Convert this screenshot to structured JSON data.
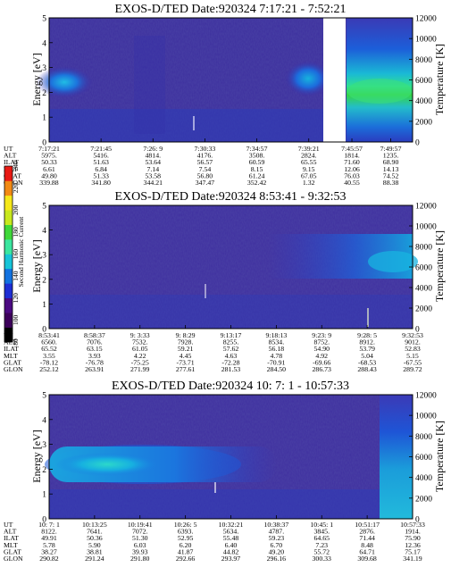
{
  "colorbar": {
    "label": "Second Harmonic Current",
    "ticks": [
      "80",
      "100",
      "120",
      "140",
      "160",
      "180",
      "200",
      "220",
      "240"
    ],
    "colors": [
      "#000000",
      "#3c005a",
      "#4b0a82",
      "#1e2ed4",
      "#1272e0",
      "#17c4d8",
      "#3be6a0",
      "#3fd83a",
      "#c8e81e",
      "#f5e81a",
      "#f28a14",
      "#e81a14"
    ]
  },
  "chart_data": [
    {
      "type": "heatmap",
      "title": "EXOS-D/TED   Date:920324   7:17:21 - 7:52:21",
      "ylabel": "Energy [eV]",
      "y2label": "Temperature [K]",
      "ylim": [
        0,
        5
      ],
      "y2lim": [
        0,
        12000
      ],
      "yticks": [
        "0",
        "1",
        "2",
        "3",
        "4",
        "5"
      ],
      "y2ticks": [
        "0",
        "2000",
        "4000",
        "6000",
        "8000",
        "10000",
        "12000"
      ],
      "table": {
        "labels": [
          "UT",
          "ALT",
          "ILAT",
          "MLT",
          "GLAT",
          "GLON"
        ],
        "columns": [
          [
            "7:17:21",
            "5975.",
            "50.33",
            "6.61",
            "49.80",
            "339.88"
          ],
          [
            "7:21:45",
            "5416.",
            "51.63",
            "6.84",
            "51.33",
            "341.80"
          ],
          [
            "7:26: 9",
            "4814.",
            "53.64",
            "7.14",
            "53.58",
            "344.21"
          ],
          [
            "7:30:33",
            "4176.",
            "56.57",
            "7.54",
            "56.80",
            "347.47"
          ],
          [
            "7:34:57",
            "3508.",
            "60.59",
            "8.15",
            "61.24",
            "352.42"
          ],
          [
            "7:39:21",
            "2824.",
            "65.55",
            "9.15",
            "67.05",
            "1.32"
          ],
          [
            "7:45:57",
            "1814.",
            "71.60",
            "12.06",
            "76.03",
            "40.55"
          ],
          [
            "7:49:57",
            "1235.",
            "68.90",
            "14.13",
            "74.52",
            "88.38"
          ]
        ]
      },
      "data_gap": [
        "7:43:46",
        "7:45:20"
      ]
    },
    {
      "type": "heatmap",
      "title": "EXOS-D/TED   Date:920324   8:53:41 - 9:32:53",
      "ylabel": "Energy [eV]",
      "y2label": "Temperature [K]",
      "ylim": [
        0,
        5
      ],
      "y2lim": [
        0,
        12000
      ],
      "yticks": [
        "0",
        "1",
        "2",
        "3",
        "4",
        "5"
      ],
      "y2ticks": [
        "0",
        "2000",
        "4000",
        "6000",
        "8000",
        "10000",
        "12000"
      ],
      "table": {
        "labels": [
          "UT",
          "ALT",
          "ILAT",
          "MLT",
          "GLAT",
          "GLON"
        ],
        "columns": [
          [
            "8:53:41",
            "6560.",
            "65.52",
            "3.55",
            "-78.12",
            "252.12"
          ],
          [
            "8:58:37",
            "7076.",
            "63.15",
            "3.93",
            "-76.78",
            "263.91"
          ],
          [
            "9: 3:33",
            "7532.",
            "61.05",
            "4.22",
            "-75.25",
            "271.99"
          ],
          [
            "9: 8:29",
            "7928.",
            "59.21",
            "4.45",
            "-73.71",
            "277.61"
          ],
          [
            "9:13:17",
            "8255.",
            "57.62",
            "4.63",
            "-72.28",
            "281.53"
          ],
          [
            "9:18:13",
            "8534.",
            "56.18",
            "4.78",
            "-70.91",
            "284.50"
          ],
          [
            "9:23: 9",
            "8752.",
            "54.90",
            "4.92",
            "-69.66",
            "286.73"
          ],
          [
            "9:28: 5",
            "8912.",
            "53.79",
            "5.04",
            "-68.53",
            "288.43"
          ],
          [
            "9:32:53",
            "9012.",
            "52.83",
            "5.15",
            "-67.55",
            "289.72"
          ]
        ]
      }
    },
    {
      "type": "heatmap",
      "title": "EXOS-D/TED   Date:920324   10: 7: 1 - 10:57:33",
      "ylabel": "Energy [eV]",
      "y2label": "Temperature [K]",
      "ylim": [
        0,
        5
      ],
      "y2lim": [
        0,
        12000
      ],
      "yticks": [
        "0",
        "1",
        "2",
        "3",
        "4",
        "5"
      ],
      "y2ticks": [
        "0",
        "2000",
        "4000",
        "6000",
        "8000",
        "10000",
        "12000"
      ],
      "table": {
        "labels": [
          "UT",
          "ALT",
          "ILAT",
          "MLT",
          "GLAT",
          "GLON"
        ],
        "columns": [
          [
            "10: 7: 1",
            "8122.",
            "49.91",
            "5.78",
            "38.27",
            "290.82"
          ],
          [
            "10:13:25",
            "7641.",
            "50.36",
            "5.90",
            "38.81",
            "291.24"
          ],
          [
            "10:19:41",
            "7072.",
            "51.30",
            "6.03",
            "39.93",
            "291.80"
          ],
          [
            "10:26: 5",
            "6393.",
            "52.95",
            "6.20",
            "41.87",
            "292.66"
          ],
          [
            "10:32:21",
            "5634.",
            "55.48",
            "6.40",
            "44.82",
            "293.97"
          ],
          [
            "10:38:37",
            "4787.",
            "59.23",
            "6.70",
            "49.20",
            "296.16"
          ],
          [
            "10:45: 1",
            "3845.",
            "64.65",
            "7.23",
            "55.72",
            "300.33"
          ],
          [
            "10:51:17",
            "2876.",
            "71.44",
            "8.48",
            "64.71",
            "309.68"
          ],
          [
            "10:57:33",
            "1914.",
            "75.90",
            "12.36",
            "75.17",
            "341.19"
          ]
        ]
      }
    }
  ]
}
